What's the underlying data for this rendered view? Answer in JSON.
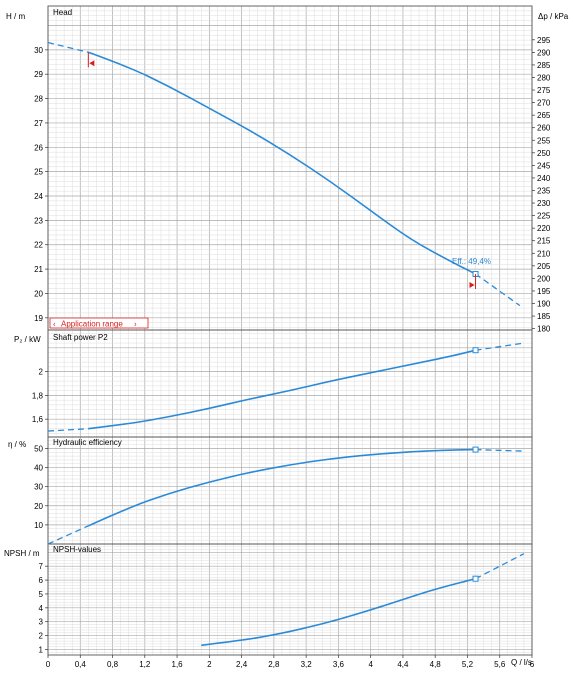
{
  "chart_data": {
    "type": "line",
    "x_axis": {
      "label": "Q / l/s",
      "min": 0,
      "max": 6,
      "ticks": [
        "0",
        "0,4",
        "0,8",
        "1,2",
        "1,6",
        "2",
        "2,4",
        "2,8",
        "3,2",
        "3,6",
        "4",
        "4,4",
        "4,8",
        "5,2",
        "5,6",
        "6"
      ]
    },
    "application_range": {
      "label": "Application range",
      "q_min": 0.5,
      "q_max": 5.3
    },
    "panels": [
      {
        "id": "head",
        "title": "Head",
        "y_label_left": "H / m",
        "y_label_right": "Δp / kPa",
        "ylim": [
          18.5,
          31.8
        ],
        "left_ticks": [
          "19",
          "20",
          "21",
          "22",
          "23",
          "24",
          "25",
          "26",
          "27",
          "28",
          "29",
          "30"
        ],
        "right_ticks": [
          "180",
          "185",
          "190",
          "195",
          "200",
          "205",
          "210",
          "215",
          "220",
          "225",
          "230",
          "235",
          "240",
          "245",
          "250",
          "255",
          "260",
          "265",
          "270",
          "275",
          "280",
          "285",
          "290",
          "295"
        ],
        "annotation": "Eff.: 49,4%",
        "series": [
          {
            "name": "Head",
            "x": [
              0.5,
              1.0,
              1.5,
              2.0,
              2.5,
              3.0,
              3.5,
              4.0,
              4.5,
              5.0,
              5.3
            ],
            "y": [
              29.9,
              29.3,
              28.5,
              27.6,
              26.7,
              25.7,
              24.6,
              23.4,
              22.2,
              21.3,
              20.8
            ],
            "extension_x": [
              0,
              5.85
            ],
            "extension_y": [
              30.3,
              19.5
            ]
          }
        ]
      },
      {
        "id": "power",
        "title": "Shaft power P2",
        "y_label_left": "P₂ / kW",
        "ylim": [
          1.45,
          2.35
        ],
        "left_ticks": [
          "1,6",
          "1,8",
          "2"
        ],
        "series": [
          {
            "name": "Shaft power P2",
            "x": [
              0.5,
              1.0,
              1.5,
              2.0,
              2.5,
              3.0,
              3.5,
              4.0,
              4.5,
              5.0,
              5.3
            ],
            "y": [
              1.52,
              1.56,
              1.62,
              1.69,
              1.77,
              1.84,
              1.92,
              1.99,
              2.06,
              2.13,
              2.18
            ],
            "extension_x": [
              0,
              5.9
            ],
            "extension_y": [
              1.5,
              2.24
            ]
          }
        ]
      },
      {
        "id": "efficiency",
        "title": "Hydraulic efficiency",
        "y_label_left": "η / %",
        "ylim": [
          0,
          56
        ],
        "left_ticks": [
          "10",
          "20",
          "30",
          "40",
          "50"
        ],
        "series": [
          {
            "name": "Hydraulic efficiency",
            "x": [
              0.5,
              1.0,
              1.5,
              2.0,
              2.5,
              3.0,
              3.5,
              4.0,
              4.5,
              5.0,
              5.3
            ],
            "y": [
              9.5,
              19.0,
              26.5,
              32.5,
              37.5,
              41.5,
              44.6,
              46.8,
              48.3,
              49.2,
              49.4
            ],
            "extension_x": [
              0,
              5.9
            ],
            "extension_y": [
              0,
              48.6
            ]
          }
        ]
      },
      {
        "id": "npsh",
        "title": "NPSH-values",
        "y_label_left": "NPSH / m",
        "ylim": [
          0.6,
          8.6
        ],
        "left_ticks": [
          "1",
          "2",
          "3",
          "4",
          "5",
          "6",
          "7"
        ],
        "series": [
          {
            "name": "NPSH-values",
            "x": [
              1.9,
              2.4,
              2.8,
              3.2,
              3.6,
              4.0,
              4.4,
              4.8,
              5.3
            ],
            "y": [
              1.3,
              1.65,
              2.05,
              2.55,
              3.15,
              3.85,
              4.6,
              5.35,
              6.1
            ],
            "extension_x": [
              5.3,
              5.9
            ],
            "extension_y": [
              6.1,
              7.9
            ]
          }
        ]
      }
    ]
  }
}
